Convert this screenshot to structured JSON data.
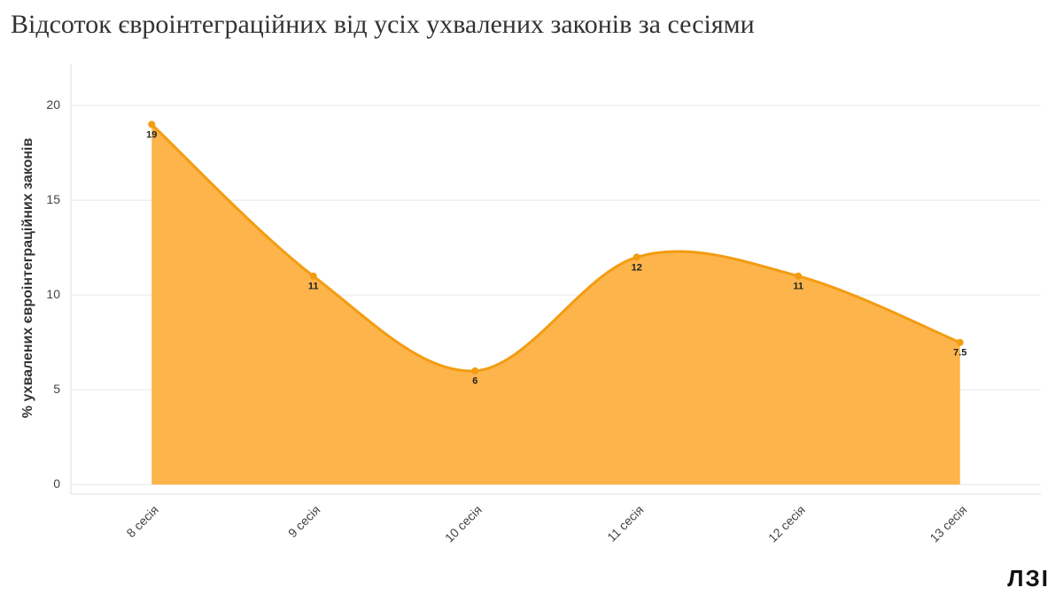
{
  "chart_data": {
    "type": "area",
    "title": "Відсоток євроінтеграційних від усіх ухвалених законів за сесіями",
    "y_label": "% ухвалених євроінтеграційних законів",
    "categories": [
      "8 сесія",
      "9 сесія",
      "10 сесія",
      "11 сесія",
      "12 сесія",
      "13 сесія"
    ],
    "values": [
      19,
      11,
      6,
      12,
      11,
      7.5
    ],
    "color": "#f39c12",
    "fill_color": "#fdb44b",
    "ylim": [
      -0.5,
      22.2
    ],
    "yticks": [
      0,
      5,
      10,
      15,
      20
    ],
    "grid": true,
    "smooth": true,
    "logo": "ЛЗІ"
  }
}
